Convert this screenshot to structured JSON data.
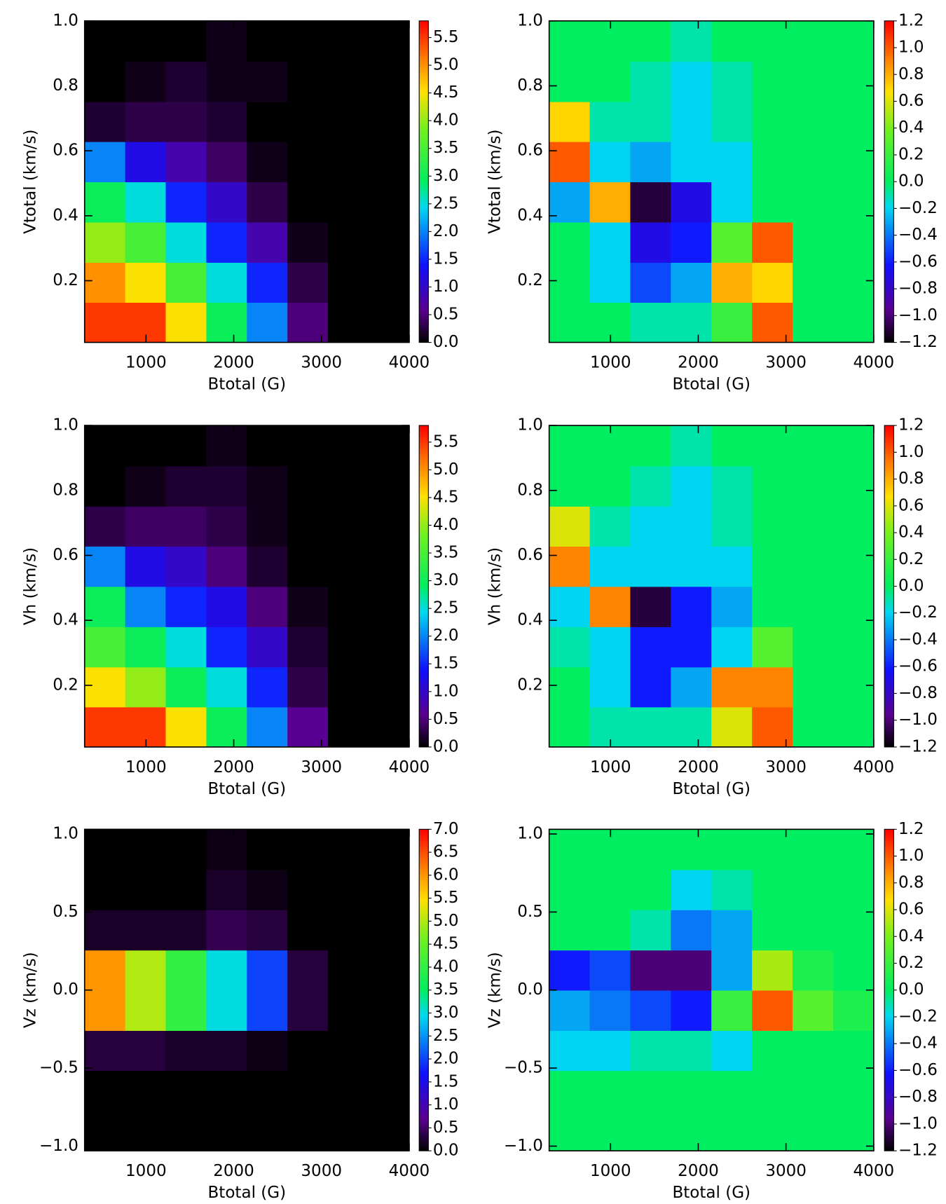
{
  "colormap": [
    {
      "at": 0,
      "color": "#000000"
    },
    {
      "at": 0.1,
      "color": "#5a0090"
    },
    {
      "at": 0.24,
      "color": "#1010ff"
    },
    {
      "at": 0.42,
      "color": "#00d8f0"
    },
    {
      "at": 0.5,
      "color": "#00ee60"
    },
    {
      "at": 0.66,
      "color": "#70f020"
    },
    {
      "at": 0.78,
      "color": "#ffe000"
    },
    {
      "at": 0.88,
      "color": "#ff8000"
    },
    {
      "at": 1,
      "color": "#ff0000"
    }
  ],
  "chart_data": [
    {
      "type": "heatmap",
      "xlabel": "Btotal (G)",
      "ylabel": "Vtotal (km/s)",
      "xlim": [
        300,
        4000
      ],
      "ylim": [
        0.01,
        1.0
      ],
      "zlim": [
        0,
        5.8
      ],
      "xticks": [
        1000,
        2000,
        3000,
        4000
      ],
      "yticks": [
        0.2,
        0.4,
        0.6,
        0.8,
        {
          "value": 1.0,
          "label": "1.0"
        }
      ],
      "zticks": [
        {
          "value": 0,
          "label": "0.0"
        },
        0.5,
        {
          "value": 1,
          "label": "1.0"
        },
        1.5,
        {
          "value": 2,
          "label": "2.0"
        },
        2.5,
        {
          "value": 3,
          "label": "3.0"
        },
        3.5,
        {
          "value": 4,
          "label": "4.0"
        },
        4.5,
        {
          "value": 5,
          "label": "5.0"
        },
        5.5
      ],
      "x": [
        531,
        994,
        1456,
        1919,
        2381,
        2844,
        3306,
        3769
      ],
      "y": [
        0.072,
        0.196,
        0.319,
        0.443,
        0.567,
        0.691,
        0.814,
        0.938
      ],
      "z": [
        [
          5.5,
          5.5,
          4.5,
          3,
          2,
          0.5,
          0,
          0
        ],
        [
          5,
          4.5,
          3.5,
          2.5,
          1.5,
          0.3,
          0,
          0
        ],
        [
          4,
          3.5,
          2.5,
          1.5,
          0.8,
          0.1,
          0,
          0
        ],
        [
          3,
          2.5,
          1.5,
          1,
          0.3,
          0,
          0,
          0
        ],
        [
          2,
          1.2,
          0.8,
          0.4,
          0.1,
          0,
          0,
          0
        ],
        [
          0.2,
          0.3,
          0.3,
          0.2,
          0,
          0,
          0,
          0
        ],
        [
          0,
          0.1,
          0.2,
          0.1,
          0.1,
          0,
          0,
          0
        ],
        [
          0,
          0,
          0,
          0.1,
          0,
          0,
          0,
          0
        ]
      ]
    },
    {
      "type": "heatmap",
      "xlabel": "Btotal (G)",
      "ylabel": "Vtotal (km/s)",
      "xlim": [
        300,
        4000
      ],
      "ylim": [
        0.01,
        1.0
      ],
      "zlim": [
        -1.2,
        1.2
      ],
      "xticks": [
        1000,
        2000,
        3000,
        4000
      ],
      "yticks": [
        0.2,
        0.4,
        0.6,
        0.8,
        {
          "value": 1.0,
          "label": "1.0"
        }
      ],
      "zticks": [
        {
          "value": -1.2,
          "label": "−1.2"
        },
        {
          "value": -1.0,
          "label": "−1.0"
        },
        {
          "value": -0.8,
          "label": "−0.8"
        },
        {
          "value": -0.6,
          "label": "−0.6"
        },
        {
          "value": -0.4,
          "label": "−0.4"
        },
        {
          "value": -0.2,
          "label": "−0.2"
        },
        {
          "value": 0,
          "label": "0.0"
        },
        0.2,
        0.4,
        0.6,
        0.8,
        {
          "value": 1.0,
          "label": "1.0"
        },
        1.2
      ],
      "x": [
        531,
        994,
        1456,
        1919,
        2381,
        2844,
        3306,
        3769
      ],
      "y": [
        0.072,
        0.196,
        0.319,
        0.443,
        0.567,
        0.691,
        0.814,
        0.938
      ],
      "z": [
        [
          0,
          0,
          -0.1,
          -0.1,
          0.2,
          1.0,
          0,
          0
        ],
        [
          0,
          -0.2,
          -0.5,
          -0.3,
          0.8,
          0.7,
          0,
          0
        ],
        [
          0,
          -0.2,
          -0.7,
          -0.6,
          0.3,
          1.0,
          0,
          0
        ],
        [
          -0.3,
          0.8,
          -1.1,
          -0.7,
          -0.2,
          0,
          0,
          0
        ],
        [
          1.0,
          -0.2,
          -0.3,
          -0.2,
          -0.2,
          0,
          0,
          0
        ],
        [
          0.7,
          -0.1,
          -0.1,
          -0.2,
          -0.1,
          0,
          0,
          0
        ],
        [
          0,
          0,
          -0.1,
          -0.2,
          -0.1,
          0,
          0,
          0
        ],
        [
          0,
          0,
          0,
          -0.1,
          0,
          0,
          0,
          0
        ]
      ]
    },
    {
      "type": "heatmap",
      "xlabel": "Btotal (G)",
      "ylabel": "Vh (km/s)",
      "xlim": [
        300,
        4000
      ],
      "ylim": [
        0.01,
        1.0
      ],
      "zlim": [
        0,
        5.8
      ],
      "xticks": [
        1000,
        2000,
        3000,
        4000
      ],
      "yticks": [
        0.2,
        0.4,
        0.6,
        0.8,
        {
          "value": 1.0,
          "label": "1.0"
        }
      ],
      "zticks": [
        {
          "value": 0,
          "label": "0.0"
        },
        0.5,
        {
          "value": 1,
          "label": "1.0"
        },
        1.5,
        {
          "value": 2,
          "label": "2.0"
        },
        2.5,
        {
          "value": 3,
          "label": "3.0"
        },
        3.5,
        {
          "value": 4,
          "label": "4.0"
        },
        4.5,
        {
          "value": 5,
          "label": "5.0"
        },
        5.5
      ],
      "x": [
        531,
        994,
        1456,
        1919,
        2381,
        2844,
        3306,
        3769
      ],
      "y": [
        0.072,
        0.196,
        0.319,
        0.443,
        0.567,
        0.691,
        0.814,
        0.938
      ],
      "z": [
        [
          5.5,
          5.5,
          4.5,
          3,
          2,
          0.6,
          0,
          0
        ],
        [
          4.5,
          4,
          3,
          2.5,
          1.5,
          0.3,
          0,
          0
        ],
        [
          3.5,
          3,
          2.5,
          1.5,
          1,
          0.2,
          0,
          0
        ],
        [
          3,
          2,
          1.5,
          1.2,
          0.5,
          0.1,
          0,
          0
        ],
        [
          2,
          1.2,
          1,
          0.5,
          0.2,
          0,
          0,
          0
        ],
        [
          0.3,
          0.4,
          0.4,
          0.3,
          0.1,
          0,
          0,
          0
        ],
        [
          0,
          0.1,
          0.2,
          0.2,
          0.1,
          0,
          0,
          0
        ],
        [
          0,
          0,
          0,
          0.1,
          0,
          0,
          0,
          0
        ]
      ]
    },
    {
      "type": "heatmap",
      "xlabel": "Btotal (G)",
      "ylabel": "Vh (km/s)",
      "xlim": [
        300,
        4000
      ],
      "ylim": [
        0.01,
        1.0
      ],
      "zlim": [
        -1.2,
        1.2
      ],
      "xticks": [
        1000,
        2000,
        3000,
        4000
      ],
      "yticks": [
        0.2,
        0.4,
        0.6,
        0.8,
        {
          "value": 1.0,
          "label": "1.0"
        }
      ],
      "zticks": [
        {
          "value": -1.2,
          "label": "−1.2"
        },
        {
          "value": -1.0,
          "label": "−1.0"
        },
        {
          "value": -0.8,
          "label": "−0.8"
        },
        {
          "value": -0.6,
          "label": "−0.6"
        },
        {
          "value": -0.4,
          "label": "−0.4"
        },
        {
          "value": -0.2,
          "label": "−0.2"
        },
        {
          "value": 0,
          "label": "0.0"
        },
        0.2,
        0.4,
        0.6,
        0.8,
        {
          "value": 1.0,
          "label": "1.0"
        },
        1.2
      ],
      "x": [
        531,
        994,
        1456,
        1919,
        2381,
        2844,
        3306,
        3769
      ],
      "y": [
        0.072,
        0.196,
        0.319,
        0.443,
        0.567,
        0.691,
        0.814,
        0.938
      ],
      "z": [
        [
          0,
          -0.1,
          -0.1,
          -0.1,
          0.6,
          1.0,
          0,
          0
        ],
        [
          0,
          -0.2,
          -0.6,
          -0.3,
          0.9,
          0.9,
          0,
          0
        ],
        [
          -0.1,
          -0.2,
          -0.6,
          -0.6,
          -0.2,
          0.3,
          0,
          0
        ],
        [
          -0.2,
          0.9,
          -1.1,
          -0.6,
          -0.3,
          0,
          0,
          0
        ],
        [
          0.9,
          -0.2,
          -0.2,
          -0.2,
          -0.2,
          0,
          0,
          0
        ],
        [
          0.6,
          -0.1,
          -0.2,
          -0.2,
          -0.1,
          0,
          0,
          0
        ],
        [
          0,
          0,
          -0.1,
          -0.2,
          -0.1,
          0,
          0,
          0
        ],
        [
          0,
          0,
          0,
          -0.1,
          0,
          0,
          0,
          0
        ]
      ]
    },
    {
      "type": "heatmap",
      "xlabel": "Btotal (G)",
      "ylabel": "Vz (km/s)",
      "xlim": [
        300,
        4000
      ],
      "ylim": [
        -1.03,
        1.03
      ],
      "zlim": [
        0,
        7.0
      ],
      "xticks": [
        1000,
        2000,
        3000,
        4000
      ],
      "yticks": [
        {
          "value": -1.0,
          "label": "−1.0"
        },
        {
          "value": -0.5,
          "label": "−0.5"
        },
        {
          "value": 0,
          "label": "0.0"
        },
        0.5,
        {
          "value": 1.0,
          "label": "1.0"
        }
      ],
      "zticks": [
        {
          "value": 0,
          "label": "0.0"
        },
        0.5,
        {
          "value": 1,
          "label": "1.0"
        },
        1.5,
        {
          "value": 2,
          "label": "2.0"
        },
        2.5,
        {
          "value": 3,
          "label": "3.0"
        },
        3.5,
        {
          "value": 4,
          "label": "4.0"
        },
        4.5,
        {
          "value": 5,
          "label": "5.0"
        },
        5.5,
        {
          "value": 6,
          "label": "6.0"
        },
        6.5,
        {
          "value": 7,
          "label": "7.0"
        }
      ],
      "x": [
        531,
        994,
        1456,
        1919,
        2381,
        2844,
        3306,
        3769
      ],
      "y": [
        -0.901,
        -0.644,
        -0.386,
        -0.129,
        0.129,
        0.386,
        0.644,
        0.901
      ],
      "z": [
        [
          0,
          0,
          0,
          0,
          0,
          0,
          0,
          0
        ],
        [
          0,
          0,
          0,
          0,
          0,
          0,
          0,
          0
        ],
        [
          0.3,
          0.3,
          0.2,
          0.2,
          0.1,
          0,
          0,
          0
        ],
        [
          6,
          5,
          4,
          3,
          2,
          0.3,
          0,
          0
        ],
        [
          6,
          5,
          4,
          3,
          2,
          0.3,
          0,
          0
        ],
        [
          0.2,
          0.2,
          0.2,
          0.4,
          0.3,
          0,
          0,
          0
        ],
        [
          0,
          0,
          0,
          0.2,
          0.1,
          0,
          0,
          0
        ],
        [
          0,
          0,
          0,
          0.1,
          0,
          0,
          0,
          0
        ]
      ]
    },
    {
      "type": "heatmap",
      "xlabel": "Btotal (G)",
      "ylabel": "Vz (km/s)",
      "xlim": [
        300,
        4000
      ],
      "ylim": [
        -1.03,
        1.03
      ],
      "zlim": [
        -1.2,
        1.2
      ],
      "xticks": [
        1000,
        2000,
        3000,
        4000
      ],
      "yticks": [
        {
          "value": -1.0,
          "label": "−1.0"
        },
        {
          "value": -0.5,
          "label": "−0.5"
        },
        {
          "value": 0,
          "label": "0.0"
        },
        0.5,
        {
          "value": 1.0,
          "label": "1.0"
        }
      ],
      "zticks": [
        {
          "value": -1.2,
          "label": "−1.2"
        },
        {
          "value": -1.0,
          "label": "−1.0"
        },
        {
          "value": -0.8,
          "label": "−0.8"
        },
        {
          "value": -0.6,
          "label": "−0.6"
        },
        {
          "value": -0.4,
          "label": "−0.4"
        },
        {
          "value": -0.2,
          "label": "−0.2"
        },
        {
          "value": 0,
          "label": "0.0"
        },
        0.2,
        0.4,
        0.6,
        0.8,
        {
          "value": 1.0,
          "label": "1.0"
        },
        1.2
      ],
      "x": [
        531,
        994,
        1456,
        1919,
        2381,
        2844,
        3306,
        3769
      ],
      "y": [
        -0.901,
        -0.644,
        -0.386,
        -0.129,
        0.129,
        0.386,
        0.644,
        0.901
      ],
      "z": [
        [
          0,
          0,
          0,
          0,
          0,
          0,
          0,
          0
        ],
        [
          0,
          0,
          0,
          0,
          0,
          0,
          0,
          0
        ],
        [
          -0.2,
          -0.2,
          -0.1,
          -0.1,
          -0.2,
          0,
          0,
          0
        ],
        [
          -0.3,
          -0.4,
          -0.5,
          -0.6,
          0.2,
          1.0,
          0.3,
          0.1
        ],
        [
          -0.6,
          -0.5,
          -1.0,
          -1.0,
          -0.3,
          0.5,
          0.1,
          0
        ],
        [
          0,
          0,
          -0.1,
          -0.4,
          -0.3,
          0,
          0,
          0
        ],
        [
          0,
          0,
          0,
          -0.2,
          -0.1,
          0,
          0,
          0
        ],
        [
          0,
          0,
          0,
          0,
          0,
          0,
          0,
          0
        ]
      ]
    }
  ]
}
